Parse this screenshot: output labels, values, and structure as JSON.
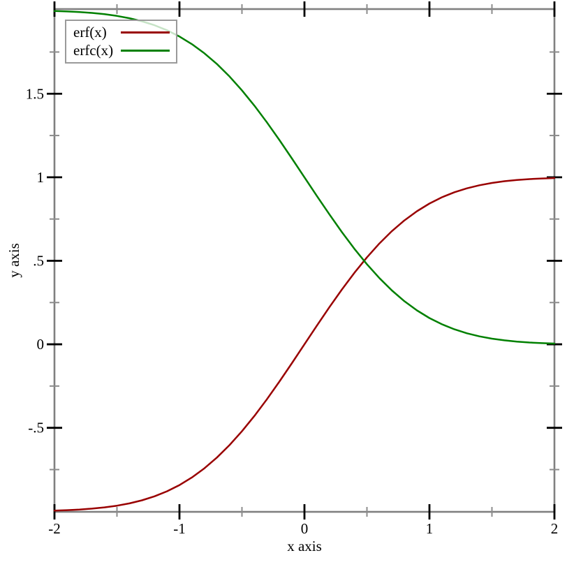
{
  "colors": {
    "background": "#ffffff",
    "axis_frame": "#808080",
    "major_tick": "#000000",
    "minor_tick": "#8c8c8c",
    "text": "#000000",
    "legend_border": "#9a9a9a",
    "erf_line": "#990000",
    "erfc_line": "#008000"
  },
  "legend": {
    "items": [
      {
        "label": "erf(x)",
        "series": 0
      },
      {
        "label": "erfc(x)",
        "series": 1
      }
    ]
  },
  "chart_data": {
    "type": "line",
    "title": "",
    "xlabel": "x axis",
    "ylabel": "y axis",
    "xlim": [
      -2,
      2
    ],
    "ylim": [
      -1.003,
      2.007
    ],
    "grid": false,
    "legend_position": "top-left",
    "x_major_ticks": [
      {
        "value": -2,
        "label": "-2"
      },
      {
        "value": -1,
        "label": "-1"
      },
      {
        "value": 0,
        "label": "0"
      },
      {
        "value": 1,
        "label": "1"
      },
      {
        "value": 2,
        "label": "2"
      }
    ],
    "x_minor_ticks": [
      -1.5,
      -0.5,
      0.5,
      1.5
    ],
    "y_major_ticks": [
      {
        "value": -0.5,
        "label": "-.5"
      },
      {
        "value": 0,
        "label": "0"
      },
      {
        "value": 0.5,
        "label": ".5"
      },
      {
        "value": 1,
        "label": "1"
      },
      {
        "value": 1.5,
        "label": "1.5"
      }
    ],
    "y_minor_ticks": [
      -0.75,
      -0.25,
      0.25,
      0.75,
      1.25,
      1.75
    ],
    "x": [
      -2.0,
      -1.9,
      -1.8,
      -1.7,
      -1.6,
      -1.5,
      -1.4,
      -1.3,
      -1.2,
      -1.1,
      -1.0,
      -0.9,
      -0.8,
      -0.7,
      -0.6,
      -0.5,
      -0.4,
      -0.3,
      -0.2,
      -0.1,
      0.0,
      0.1,
      0.2,
      0.3,
      0.4,
      0.5,
      0.6,
      0.7,
      0.8,
      0.9,
      1.0,
      1.1,
      1.2,
      1.3,
      1.4,
      1.5,
      1.6,
      1.7,
      1.8,
      1.9,
      2.0
    ],
    "series": [
      {
        "name": "erf(x)",
        "color": "#990000",
        "values": [
          -0.9953,
          -0.9928,
          -0.9891,
          -0.9838,
          -0.9763,
          -0.9661,
          -0.9523,
          -0.934,
          -0.9103,
          -0.8802,
          -0.8427,
          -0.7969,
          -0.7421,
          -0.6778,
          -0.6039,
          -0.5205,
          -0.4284,
          -0.3286,
          -0.2227,
          -0.1125,
          0.0,
          0.1125,
          0.2227,
          0.3286,
          0.4284,
          0.5205,
          0.6039,
          0.6778,
          0.7421,
          0.7969,
          0.8427,
          0.8802,
          0.9103,
          0.934,
          0.9523,
          0.9661,
          0.9763,
          0.9838,
          0.9891,
          0.9928,
          0.9953
        ]
      },
      {
        "name": "erfc(x)",
        "color": "#008000",
        "values": [
          1.9953,
          1.9928,
          1.9891,
          1.9838,
          1.9763,
          1.9661,
          1.9523,
          1.934,
          1.9103,
          1.8802,
          1.8427,
          1.7969,
          1.7421,
          1.6778,
          1.6039,
          1.5205,
          1.4284,
          1.3286,
          1.2227,
          1.1125,
          1.0,
          0.8875,
          0.7773,
          0.6714,
          0.5716,
          0.4795,
          0.3961,
          0.3222,
          0.2579,
          0.2031,
          0.1573,
          0.1198,
          0.0897,
          0.066,
          0.0477,
          0.0339,
          0.0237,
          0.0162,
          0.0109,
          0.0072,
          0.0047
        ]
      }
    ]
  }
}
